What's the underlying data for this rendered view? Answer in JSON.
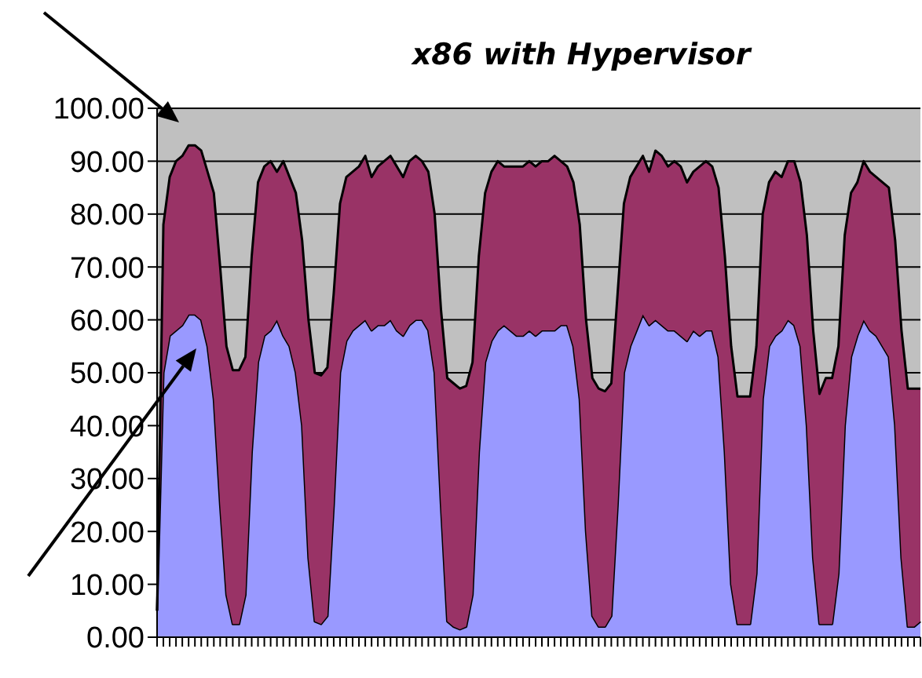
{
  "chart_data": {
    "type": "area",
    "title": "x86 with Hypervisor",
    "stacked": true,
    "grid": "y",
    "tick_labels": "y",
    "categories": [
      null,
      null,
      null,
      null,
      null,
      null,
      null,
      null,
      null,
      null,
      null,
      null,
      null,
      null,
      null,
      null,
      null,
      null,
      null,
      null,
      null,
      null,
      null,
      null,
      null,
      null,
      null,
      null,
      null,
      null,
      null,
      null,
      null,
      null,
      null,
      null,
      null,
      null,
      null,
      null,
      null,
      null,
      null,
      null,
      null,
      null,
      null,
      null,
      null,
      null,
      null,
      null,
      null,
      null,
      null,
      null,
      null,
      null,
      null,
      null,
      null,
      null,
      null,
      null,
      null,
      null,
      null,
      null,
      null,
      null,
      null,
      null,
      null,
      null,
      null,
      null,
      null,
      null,
      null,
      null,
      null,
      null,
      null,
      null,
      null,
      null,
      null,
      null,
      null,
      null,
      null,
      null,
      null,
      null,
      null,
      null,
      null,
      null,
      null,
      null,
      null,
      null,
      null,
      null,
      null,
      null,
      null,
      null,
      null,
      null,
      null,
      null,
      null,
      null,
      null,
      null,
      null,
      null,
      null,
      null,
      null,
      null
    ],
    "ylim": [
      0,
      100
    ],
    "yticks": [
      {
        "value": 0,
        "label": "0.00"
      },
      {
        "value": 10,
        "label": "10.00"
      },
      {
        "value": 20,
        "label": "20.00"
      },
      {
        "value": 30,
        "label": "30.00"
      },
      {
        "value": 40,
        "label": "40.00"
      },
      {
        "value": 50,
        "label": "50.00"
      },
      {
        "value": 60,
        "label": "60.00"
      },
      {
        "value": 70,
        "label": "70.00"
      },
      {
        "value": 80,
        "label": "80.00"
      },
      {
        "value": 90,
        "label": "90.00"
      },
      {
        "value": 100,
        "label": "100.00"
      }
    ],
    "series": [
      {
        "color": "#9999ff",
        "values": [
          5,
          50,
          57,
          58,
          59,
          61,
          61,
          60,
          55,
          45,
          25,
          8,
          2.5,
          2.5,
          8,
          35,
          52,
          57,
          58,
          60,
          57,
          55,
          50,
          40,
          15,
          3,
          2.5,
          4,
          25,
          50,
          56,
          58,
          59,
          60,
          58,
          59,
          59,
          60,
          58,
          57,
          59,
          60,
          60,
          58,
          50,
          25,
          3,
          2,
          1.5,
          2,
          8,
          35,
          52,
          56,
          58,
          59,
          58,
          57,
          57,
          58,
          57,
          58,
          58,
          58,
          59,
          59,
          55,
          45,
          20,
          4,
          2,
          2,
          4,
          25,
          50,
          55,
          58,
          61,
          59,
          60,
          59,
          58,
          58,
          57,
          56,
          58,
          57,
          58,
          58,
          53,
          35,
          10,
          2.5,
          2.5,
          2.5,
          12,
          45,
          55,
          57,
          58,
          60,
          59,
          55,
          40,
          15,
          2.5,
          2.5,
          2.5,
          12,
          40,
          53,
          57,
          60,
          58,
          57,
          55,
          53,
          40,
          15,
          2,
          2,
          3
        ]
      },
      {
        "color": "#993366",
        "values": [
          0,
          28,
          30,
          32,
          32,
          32,
          32,
          32,
          33,
          39,
          45,
          47,
          48,
          48,
          45,
          37,
          34,
          32,
          32,
          28,
          33,
          32,
          34,
          35,
          45,
          47,
          47,
          47,
          40,
          32,
          31,
          30,
          30,
          31,
          29,
          30,
          31,
          31,
          31,
          30,
          31,
          31,
          30,
          30,
          30,
          37,
          46,
          46,
          45.5,
          45.5,
          44,
          37,
          32,
          32,
          32,
          30,
          31,
          32,
          32,
          32,
          32,
          32,
          32,
          33,
          31,
          30,
          31,
          33,
          40,
          45,
          45,
          44.5,
          44,
          40,
          32,
          32,
          31,
          30,
          29,
          32,
          32,
          31,
          32,
          32,
          30,
          30,
          32,
          32,
          31,
          32,
          37,
          45,
          43,
          43,
          43,
          43,
          35,
          31,
          31,
          29,
          30,
          31,
          31,
          36,
          43,
          43.5,
          46.5,
          46.5,
          43,
          36,
          31,
          29,
          30,
          30,
          30,
          31,
          32,
          35,
          43,
          45,
          45,
          44
        ]
      }
    ]
  }
}
